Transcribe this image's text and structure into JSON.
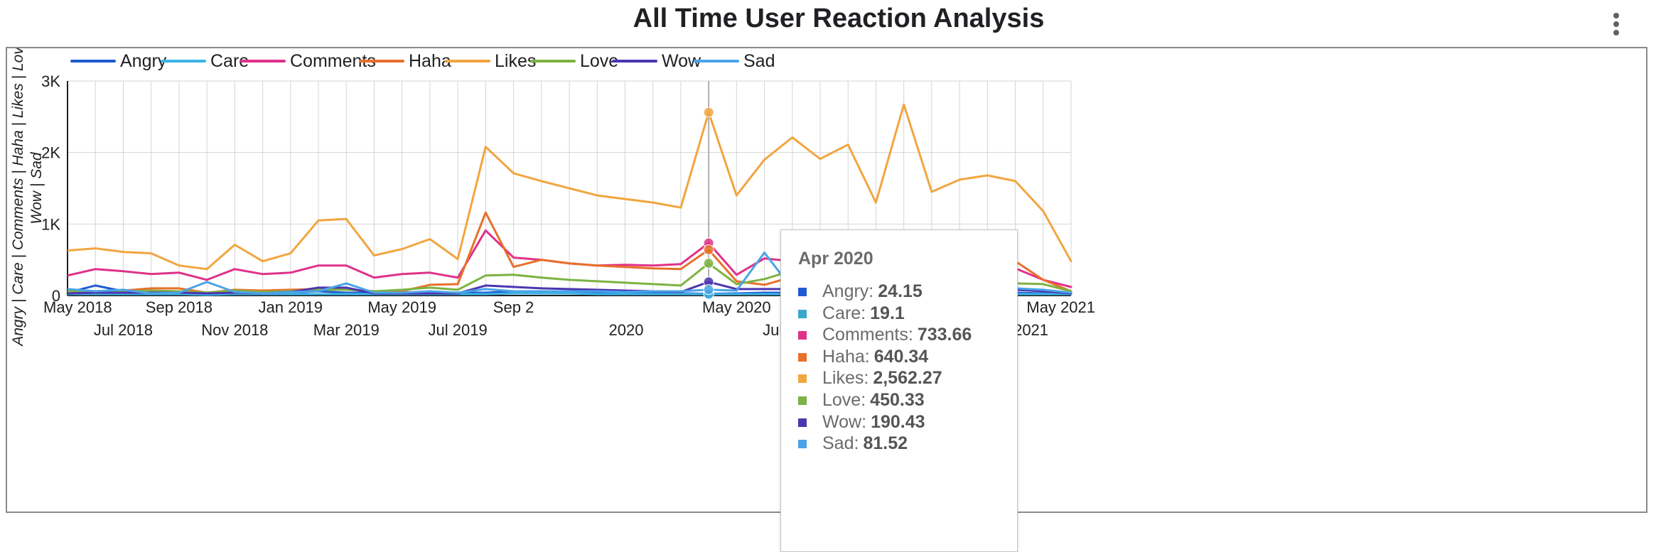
{
  "title": "All Time User Reaction Analysis",
  "menu_icon": "more-vert-icon",
  "chart_data": {
    "type": "line",
    "title": "All Time User Reaction Analysis",
    "ylabel": "Angry | Care | Comments | Haha | Likes | Love | Wow | Sad",
    "xlabel": "",
    "ylim": [
      0,
      3000
    ],
    "yticks": [
      {
        "value": 0,
        "label": "0"
      },
      {
        "value": 1000,
        "label": "1K"
      },
      {
        "value": 2000,
        "label": "2K"
      },
      {
        "value": 3000,
        "label": "3K"
      }
    ],
    "x": [
      "Apr 2018",
      "May 2018",
      "Jun 2018",
      "Jul 2018",
      "Aug 2018",
      "Sep 2018",
      "Oct 2018",
      "Nov 2018",
      "Dec 2018",
      "Jan 2019",
      "Feb 2019",
      "Mar 2019",
      "Apr 2019",
      "May 2019",
      "Jun 2019",
      "Jul 2019",
      "Aug 2019",
      "Sep 2019",
      "Oct 2019",
      "Nov 2019",
      "Dec 2019",
      "Jan 2020",
      "Feb 2020",
      "Mar 2020",
      "Apr 2020",
      "May 2020",
      "Jun 2020",
      "Jul 2020",
      "Aug 2020",
      "Sep 2020",
      "Oct 2020",
      "Nov 2020",
      "Dec 2020",
      "Jan 2021",
      "Feb 2021",
      "Mar 2021",
      "Apr 2021",
      "May 2021"
    ],
    "x_tick_labels": [
      "May 2018",
      "Jul 2018",
      "Sep 2018",
      "Nov 2018",
      "Jan 2019",
      "Mar 2019",
      "May 2019",
      "Jul 2019",
      "Sep 2",
      "2020",
      "May 2020",
      "Jul 2020",
      "Sep 2020",
      "Nov 2020",
      "Jan 2021",
      "Mar 2021",
      "May 2021"
    ],
    "legend_position": "top",
    "grid": true,
    "series": [
      {
        "name": "Angry",
        "color": "#1f5bd0",
        "values": [
          60,
          40,
          140,
          60,
          50,
          40,
          40,
          50,
          40,
          40,
          60,
          40,
          40,
          30,
          30,
          40,
          40,
          60,
          60,
          50,
          40,
          40,
          40,
          30,
          24.15,
          30,
          40,
          40,
          40,
          50,
          40,
          40,
          40,
          30,
          40,
          40,
          30,
          20
        ]
      },
      {
        "name": "Care",
        "color": "#3cb4e6",
        "values": [
          30,
          20,
          20,
          20,
          20,
          20,
          10,
          20,
          20,
          20,
          20,
          20,
          20,
          20,
          20,
          20,
          20,
          30,
          30,
          30,
          20,
          20,
          20,
          20,
          19.1,
          20,
          20,
          20,
          20,
          20,
          20,
          20,
          20,
          20,
          20,
          20,
          20,
          20
        ]
      },
      {
        "name": "Comments",
        "color": "#e0318a",
        "values": [
          270,
          280,
          370,
          340,
          300,
          320,
          220,
          370,
          300,
          320,
          420,
          420,
          250,
          300,
          320,
          250,
          910,
          530,
          500,
          450,
          420,
          430,
          420,
          440,
          733.66,
          290,
          520,
          480,
          400,
          330,
          350,
          500,
          310,
          400,
          370,
          380,
          220,
          120
        ]
      },
      {
        "name": "Haha",
        "color": "#e8702a",
        "values": [
          70,
          60,
          60,
          70,
          100,
          100,
          40,
          80,
          70,
          80,
          90,
          90,
          60,
          60,
          150,
          160,
          1160,
          400,
          500,
          450,
          420,
          400,
          380,
          370,
          640.34,
          200,
          150,
          260,
          200,
          230,
          450,
          580,
          470,
          380,
          450,
          480,
          220,
          60
        ]
      },
      {
        "name": "Likes",
        "color": "#f2a540",
        "values": [
          600,
          630,
          660,
          610,
          590,
          420,
          370,
          710,
          480,
          590,
          1050,
          1070,
          560,
          650,
          790,
          510,
          2080,
          1710,
          1600,
          1500,
          1400,
          1350,
          1300,
          1230,
          2562.27,
          1400,
          1900,
          2210,
          1910,
          2110,
          1300,
          2670,
          1450,
          1620,
          1680,
          1600,
          1180,
          480
        ]
      },
      {
        "name": "Love",
        "color": "#7cb342",
        "values": [
          70,
          60,
          60,
          60,
          70,
          60,
          40,
          70,
          50,
          60,
          80,
          80,
          60,
          80,
          110,
          80,
          280,
          290,
          250,
          220,
          200,
          180,
          160,
          140,
          450.33,
          160,
          230,
          350,
          320,
          500,
          210,
          340,
          150,
          170,
          270,
          170,
          160,
          60
        ]
      },
      {
        "name": "Wow",
        "color": "#4c35b0",
        "values": [
          40,
          30,
          40,
          40,
          40,
          40,
          30,
          40,
          30,
          50,
          110,
          110,
          30,
          30,
          30,
          30,
          140,
          120,
          100,
          90,
          80,
          70,
          60,
          50,
          190.43,
          90,
          90,
          90,
          90,
          70,
          70,
          270,
          60,
          510,
          80,
          80,
          60,
          30
        ]
      },
      {
        "name": "Sad",
        "color": "#4aa3e8",
        "values": [
          80,
          90,
          60,
          80,
          30,
          40,
          190,
          50,
          30,
          50,
          60,
          170,
          40,
          40,
          60,
          40,
          90,
          60,
          60,
          60,
          60,
          50,
          60,
          60,
          81.52,
          70,
          600,
          90,
          130,
          60,
          60,
          520,
          100,
          60,
          130,
          100,
          80,
          40
        ]
      }
    ],
    "tooltip": {
      "title": "Apr 2020",
      "items": [
        {
          "name": "Angry",
          "value": "24.15",
          "color": "#1f5bd0"
        },
        {
          "name": "Care",
          "value": "19.1",
          "color": "#3aa8c8"
        },
        {
          "name": "Comments",
          "value": "733.66",
          "color": "#e0318a"
        },
        {
          "name": "Haha",
          "value": "640.34",
          "color": "#e8702a"
        },
        {
          "name": "Likes",
          "value": "2,562.27",
          "color": "#f2a540"
        },
        {
          "name": "Love",
          "value": "450.33",
          "color": "#7cb342"
        },
        {
          "name": "Wow",
          "value": "190.43",
          "color": "#4c35b0"
        },
        {
          "name": "Sad",
          "value": "81.52",
          "color": "#4aa3e8"
        }
      ]
    }
  }
}
